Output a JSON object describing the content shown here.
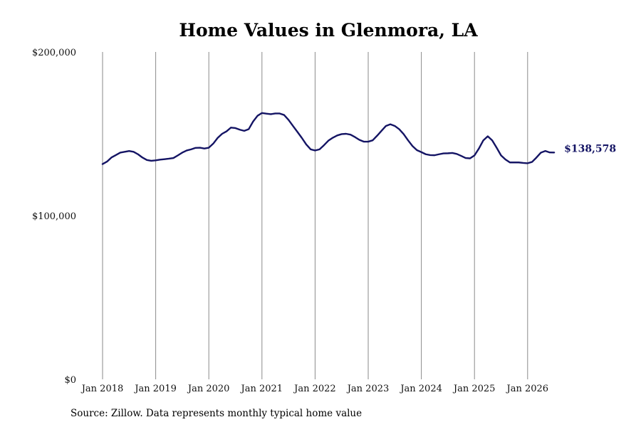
{
  "chart_data": {
    "type": "line",
    "title": "Home Values in Glenmora, LA",
    "xlabel": "",
    "ylabel": "",
    "x_ticks": [
      "Jan 2018",
      "Jan 2019",
      "Jan 2020",
      "Jan 2021",
      "Jan 2022",
      "Jan 2023",
      "Jan 2024",
      "Jan 2025",
      "Jan 2026"
    ],
    "y_ticks": [
      "$0",
      "$100,000",
      "$200,000"
    ],
    "ylim": [
      0,
      200000
    ],
    "xlim": [
      "2018-01",
      "2026-07"
    ],
    "grid": "vertical",
    "line_color": "#141464",
    "series": [
      {
        "x": [
          "2018-01",
          "2018-02",
          "2018-03",
          "2018-04",
          "2018-05",
          "2018-06",
          "2018-07",
          "2018-08",
          "2018-09",
          "2018-10",
          "2018-11",
          "2018-12",
          "2019-01",
          "2019-02",
          "2019-03",
          "2019-04",
          "2019-05",
          "2019-06",
          "2019-07",
          "2019-08",
          "2019-09",
          "2019-10",
          "2019-11",
          "2019-12",
          "2020-01",
          "2020-02",
          "2020-03",
          "2020-04",
          "2020-05",
          "2020-06",
          "2020-07",
          "2020-08",
          "2020-09",
          "2020-10",
          "2020-11",
          "2020-12",
          "2021-01",
          "2021-02",
          "2021-03",
          "2021-04",
          "2021-05",
          "2021-06",
          "2021-07",
          "2021-08",
          "2021-09",
          "2021-10",
          "2021-11",
          "2021-12",
          "2022-01",
          "2022-02",
          "2022-03",
          "2022-04",
          "2022-05",
          "2022-06",
          "2022-07",
          "2022-08",
          "2022-09",
          "2022-10",
          "2022-11",
          "2022-12",
          "2023-01",
          "2023-02",
          "2023-03",
          "2023-04",
          "2023-05",
          "2023-06",
          "2023-07",
          "2023-08",
          "2023-09",
          "2023-10",
          "2023-11",
          "2023-12",
          "2024-01",
          "2024-02",
          "2024-03",
          "2024-04",
          "2024-05",
          "2024-06",
          "2024-07",
          "2024-08",
          "2024-09",
          "2024-10",
          "2024-11",
          "2024-12",
          "2025-01",
          "2025-02",
          "2025-03",
          "2025-04",
          "2025-05",
          "2025-06",
          "2025-07",
          "2025-08",
          "2025-09",
          "2025-10",
          "2025-11",
          "2025-12",
          "2026-01",
          "2026-02",
          "2026-03",
          "2026-04",
          "2026-05",
          "2026-06",
          "2026-07"
        ],
        "values": [
          131500,
          133000,
          135500,
          137000,
          138500,
          139000,
          139500,
          139000,
          137500,
          135500,
          134000,
          133500,
          133800,
          134200,
          134500,
          134800,
          135200,
          136800,
          138500,
          139800,
          140500,
          141400,
          141500,
          141000,
          141500,
          144000,
          147500,
          150000,
          151500,
          153800,
          153500,
          152500,
          151800,
          152800,
          157500,
          161000,
          162700,
          162300,
          162000,
          162400,
          162400,
          161500,
          158500,
          154800,
          151200,
          147500,
          143500,
          140500,
          139800,
          140500,
          143000,
          145800,
          147600,
          149000,
          149800,
          150000,
          149500,
          148000,
          146300,
          145200,
          145200,
          146000,
          148800,
          151800,
          154800,
          155800,
          154800,
          152800,
          149800,
          146000,
          142500,
          140000,
          138800,
          137500,
          137000,
          136900,
          137500,
          138000,
          138100,
          138300,
          137700,
          136500,
          135200,
          135000,
          136800,
          141000,
          146000,
          148500,
          146000,
          141500,
          136800,
          134300,
          132500,
          132500,
          132500,
          132200,
          132000,
          132800,
          135500,
          138500,
          139500,
          138600,
          138578
        ],
        "end_label": "$138,578"
      }
    ]
  },
  "footer": {
    "source": "Source: Zillow. Data represents monthly typical home value"
  }
}
